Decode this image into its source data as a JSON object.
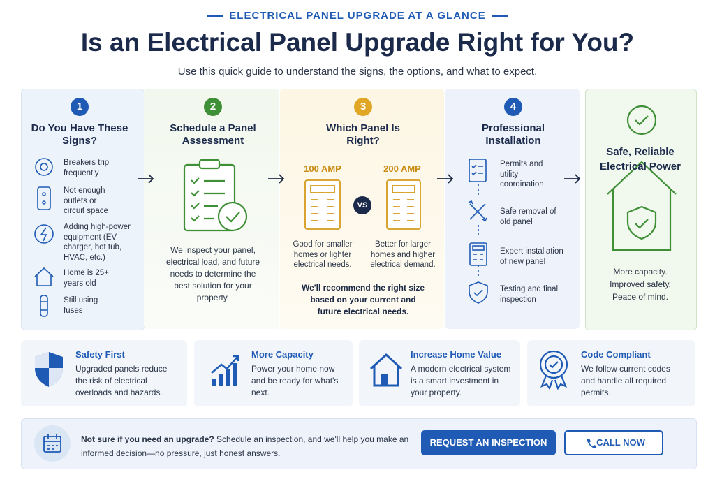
{
  "header": {
    "eyebrow": "ELECTRICAL PANEL UPGRADE AT A GLANCE",
    "title": "Is an Electrical Panel Upgrade Right for You?",
    "subtitle": "Use this quick guide to understand the signs, the options, and what to expect."
  },
  "steps": [
    {
      "number": "1",
      "title": "Do You Have These Signs?",
      "items": [
        "Breakers trip frequently",
        "Not enough outlets or circuit space",
        "Adding high-power equipment (EV charger, hot tub, HVAC, etc.)",
        "Home is 25+ years old",
        "Still using fuses"
      ]
    },
    {
      "number": "2",
      "title": "Schedule a Panel Assessment",
      "text": "We inspect your panel, electrical load, and future needs to determine the best solution for your property."
    },
    {
      "number": "3",
      "title": "Which Panel Is Right?",
      "options": [
        {
          "label": "100 AMP",
          "text": "Good for smaller homes or lighter electrical needs."
        },
        {
          "label": "200 AMP",
          "text": "Better for larger homes and higher electrical demand."
        }
      ],
      "vs": "VS",
      "note": "We'll recommend the right size based on your current and future electrical needs."
    },
    {
      "number": "4",
      "title": "Professional Installation",
      "items": [
        "Permits and utility coordination",
        "Safe removal of old panel",
        "Expert installation of new panel",
        "Testing and final inspection"
      ]
    }
  ],
  "result": {
    "title": "Safe, Reliable Electrical Power",
    "lines": [
      "More capacity.",
      "Improved safety.",
      "Peace of mind."
    ]
  },
  "benefits": [
    {
      "title": "Safety First",
      "text": "Upgraded panels reduce the risk of electrical overloads and hazards."
    },
    {
      "title": "More Capacity",
      "text": "Power your home now and be ready for what's next."
    },
    {
      "title": "Increase Home Value",
      "text": "A modern electrical system is a smart investment in your property."
    },
    {
      "title": "Code Compliant",
      "text": "We follow current codes and handle all required permits."
    }
  ],
  "cta": {
    "lead": "Not sure if you need an upgrade?",
    "text": "Schedule an inspection, and we'll help you make an informed decision—no pressure, just honest answers.",
    "buttons": [
      "REQUEST AN INSPECTION",
      "CALL NOW"
    ]
  }
}
